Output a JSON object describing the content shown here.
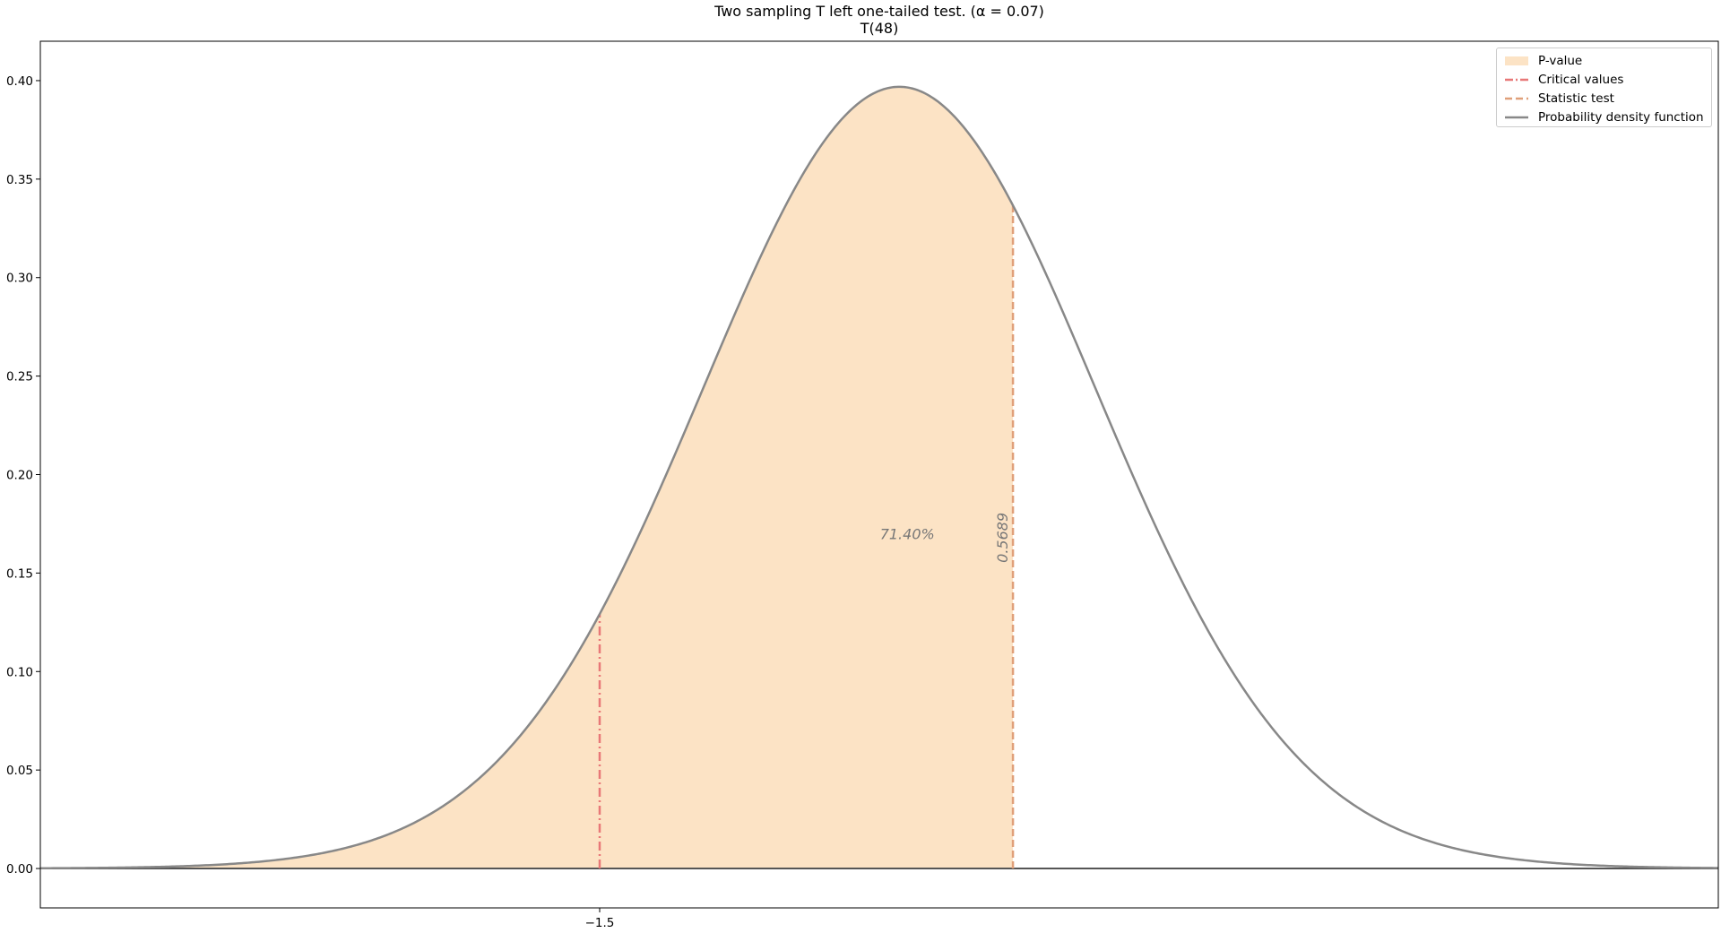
{
  "chart_data": {
    "type": "area",
    "title": "Two sampling T left one-tailed test. (α = 0.07)",
    "subtitle": "T(48)",
    "distribution": "t",
    "degrees_of_freedom": 48,
    "alpha": 0.07,
    "xlim": [
      -4.3,
      4.1
    ],
    "ylim": [
      -0.02,
      0.42
    ],
    "x_ticks": [
      -1.5
    ],
    "x_tick_labels": [
      "−1.5"
    ],
    "y_ticks": [
      0.0,
      0.05,
      0.1,
      0.15,
      0.2,
      0.25,
      0.3,
      0.35,
      0.4
    ],
    "y_tick_labels": [
      "0.00",
      "0.05",
      "0.10",
      "0.15",
      "0.20",
      "0.25",
      "0.30",
      "0.35",
      "0.40"
    ],
    "critical_value": -1.5,
    "statistic_test": 0.5689,
    "statistic_label": "0.5689",
    "p_value_label": "71.40%",
    "p_value_label_pos": [
      0.04,
      0.17
    ],
    "shaded_range": [
      -4.3,
      0.5689
    ],
    "horizontal_line_y": 0,
    "legend": {
      "position": "top-right",
      "entries": [
        "P-value",
        "Critical values",
        "Statistic test",
        "Probability density function"
      ]
    },
    "colors": {
      "fill": "#fce3c5",
      "critical": "#e87878",
      "statistic": "#e0a07a",
      "pdf": "#888888",
      "axis_line": "#555555"
    }
  }
}
